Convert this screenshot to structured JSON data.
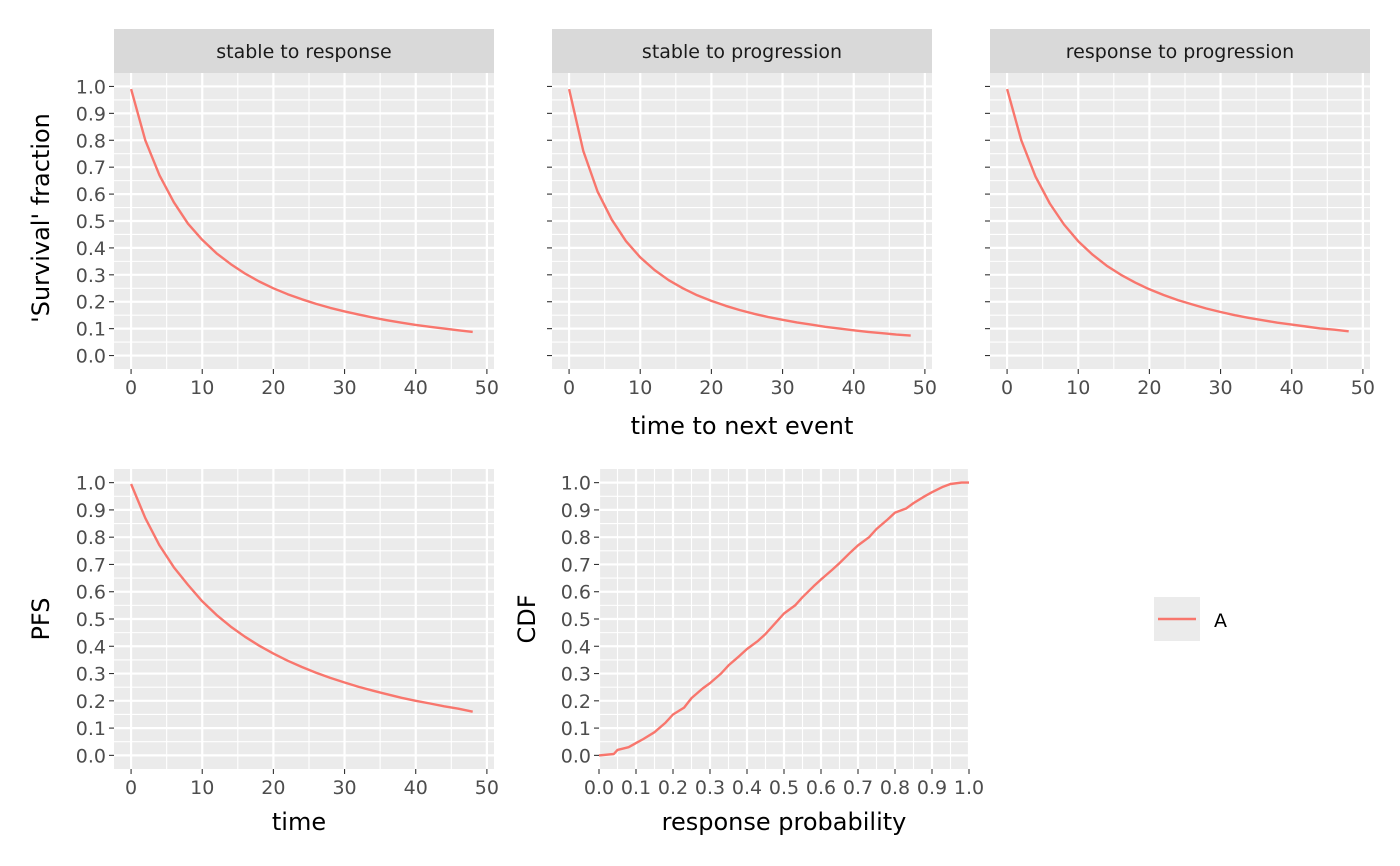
{
  "colors": {
    "panel_bg": "#ebebeb",
    "strip_bg": "#d9d9d9",
    "grid": "#ffffff",
    "series": "#f8766d",
    "tick_text": "#4d4d4d",
    "tick_line": "#333333"
  },
  "legend": {
    "entries": [
      "A"
    ]
  },
  "chart_data": [
    {
      "id": "facets",
      "type": "line",
      "ylabel": "'Survival' fraction",
      "xlabel": "time to next event",
      "xlim": [
        -2.4,
        51
      ],
      "ylim": [
        -0.05,
        1.05
      ],
      "xticks": [
        0,
        10,
        20,
        30,
        40,
        50
      ],
      "xtick_labels": [
        "0",
        "10",
        "20",
        "30",
        "40",
        "50"
      ],
      "yticks": [
        0,
        0.1,
        0.2,
        0.3,
        0.4,
        0.5,
        0.6,
        0.7,
        0.8,
        0.9,
        1.0
      ],
      "ytick_labels": [
        "0.0",
        "0.1",
        "0.2",
        "0.3",
        "0.4",
        "0.5",
        "0.6",
        "0.7",
        "0.8",
        "0.9",
        "1.0"
      ],
      "panels": [
        {
          "strip": "stable to response",
          "series": [
            {
              "name": "A",
              "x": [
                0,
                2,
                4,
                6,
                8,
                10,
                12,
                14,
                16,
                18,
                20,
                22,
                24,
                26,
                28,
                30,
                32,
                34,
                36,
                38,
                40,
                42,
                44,
                46,
                48
              ],
              "y": [
                0.99,
                0.8,
                0.67,
                0.57,
                0.49,
                0.43,
                0.38,
                0.34,
                0.305,
                0.275,
                0.25,
                0.228,
                0.209,
                0.192,
                0.177,
                0.164,
                0.152,
                0.141,
                0.131,
                0.122,
                0.114,
                0.107,
                0.1,
                0.094,
                0.088
              ]
            }
          ]
        },
        {
          "strip": "stable to progression",
          "series": [
            {
              "name": "A",
              "x": [
                0,
                2,
                4,
                6,
                8,
                10,
                12,
                14,
                16,
                18,
                20,
                22,
                24,
                26,
                28,
                30,
                32,
                34,
                36,
                38,
                40,
                42,
                44,
                46,
                48
              ],
              "y": [
                0.99,
                0.76,
                0.61,
                0.505,
                0.425,
                0.365,
                0.318,
                0.28,
                0.25,
                0.224,
                0.203,
                0.185,
                0.169,
                0.155,
                0.143,
                0.133,
                0.123,
                0.115,
                0.107,
                0.1,
                0.094,
                0.088,
                0.083,
                0.078,
                0.074
              ]
            }
          ]
        },
        {
          "strip": "response to progression",
          "series": [
            {
              "name": "A",
              "x": [
                0,
                2,
                4,
                6,
                8,
                10,
                12,
                14,
                16,
                18,
                20,
                22,
                24,
                26,
                28,
                30,
                32,
                34,
                36,
                38,
                40,
                42,
                44,
                46,
                48
              ],
              "y": [
                0.99,
                0.8,
                0.665,
                0.565,
                0.487,
                0.425,
                0.375,
                0.334,
                0.3,
                0.271,
                0.246,
                0.225,
                0.206,
                0.19,
                0.175,
                0.162,
                0.15,
                0.14,
                0.131,
                0.122,
                0.115,
                0.108,
                0.101,
                0.096,
                0.09
              ]
            }
          ]
        }
      ]
    },
    {
      "id": "pfs",
      "type": "line",
      "ylabel": "PFS",
      "xlabel": "time",
      "xlim": [
        -2.4,
        51
      ],
      "ylim": [
        -0.05,
        1.05
      ],
      "xticks": [
        0,
        10,
        20,
        30,
        40,
        50
      ],
      "xtick_labels": [
        "0",
        "10",
        "20",
        "30",
        "40",
        "50"
      ],
      "yticks": [
        0,
        0.1,
        0.2,
        0.3,
        0.4,
        0.5,
        0.6,
        0.7,
        0.8,
        0.9,
        1.0
      ],
      "ytick_labels": [
        "0.0",
        "0.1",
        "0.2",
        "0.3",
        "0.4",
        "0.5",
        "0.6",
        "0.7",
        "0.8",
        "0.9",
        "1.0"
      ],
      "series": [
        {
          "name": "A",
          "x": [
            0,
            2,
            4,
            6,
            8,
            10,
            12,
            14,
            16,
            18,
            20,
            22,
            24,
            26,
            28,
            30,
            32,
            34,
            36,
            38,
            40,
            42,
            44,
            46,
            48
          ],
          "y": [
            0.995,
            0.87,
            0.77,
            0.69,
            0.625,
            0.565,
            0.515,
            0.472,
            0.435,
            0.402,
            0.373,
            0.347,
            0.324,
            0.303,
            0.284,
            0.267,
            0.251,
            0.237,
            0.224,
            0.211,
            0.2,
            0.19,
            0.18,
            0.171,
            0.16
          ]
        }
      ]
    },
    {
      "id": "cdf",
      "type": "line",
      "ylabel": "CDF",
      "xlabel": "response probability",
      "xlim": [
        0,
        1
      ],
      "ylim": [
        -0.05,
        1.05
      ],
      "xticks": [
        0,
        0.1,
        0.2,
        0.3,
        0.4,
        0.5,
        0.6,
        0.7,
        0.8,
        0.9,
        1.0
      ],
      "xtick_labels": [
        "0.0",
        "0.1",
        "0.2",
        "0.3",
        "0.4",
        "0.5",
        "0.6",
        "0.7",
        "0.8",
        "0.9",
        "1.0"
      ],
      "yticks": [
        0,
        0.1,
        0.2,
        0.3,
        0.4,
        0.5,
        0.6,
        0.7,
        0.8,
        0.9,
        1.0
      ],
      "ytick_labels": [
        "0.0",
        "0.1",
        "0.2",
        "0.3",
        "0.4",
        "0.5",
        "0.6",
        "0.7",
        "0.8",
        "0.9",
        "1.0"
      ],
      "series": [
        {
          "name": "A",
          "x": [
            0,
            0.04,
            0.05,
            0.08,
            0.1,
            0.12,
            0.15,
            0.18,
            0.2,
            0.23,
            0.25,
            0.28,
            0.3,
            0.33,
            0.35,
            0.38,
            0.4,
            0.43,
            0.45,
            0.48,
            0.5,
            0.53,
            0.55,
            0.58,
            0.6,
            0.63,
            0.65,
            0.68,
            0.7,
            0.73,
            0.75,
            0.78,
            0.8,
            0.83,
            0.85,
            0.88,
            0.9,
            0.93,
            0.95,
            0.98,
            1.0
          ],
          "y": [
            0,
            0.005,
            0.02,
            0.03,
            0.045,
            0.06,
            0.085,
            0.12,
            0.15,
            0.175,
            0.21,
            0.245,
            0.265,
            0.3,
            0.33,
            0.365,
            0.39,
            0.42,
            0.445,
            0.49,
            0.52,
            0.55,
            0.58,
            0.62,
            0.645,
            0.68,
            0.705,
            0.745,
            0.77,
            0.8,
            0.83,
            0.865,
            0.89,
            0.905,
            0.925,
            0.95,
            0.965,
            0.985,
            0.995,
            1.0,
            1.0
          ]
        }
      ]
    }
  ]
}
